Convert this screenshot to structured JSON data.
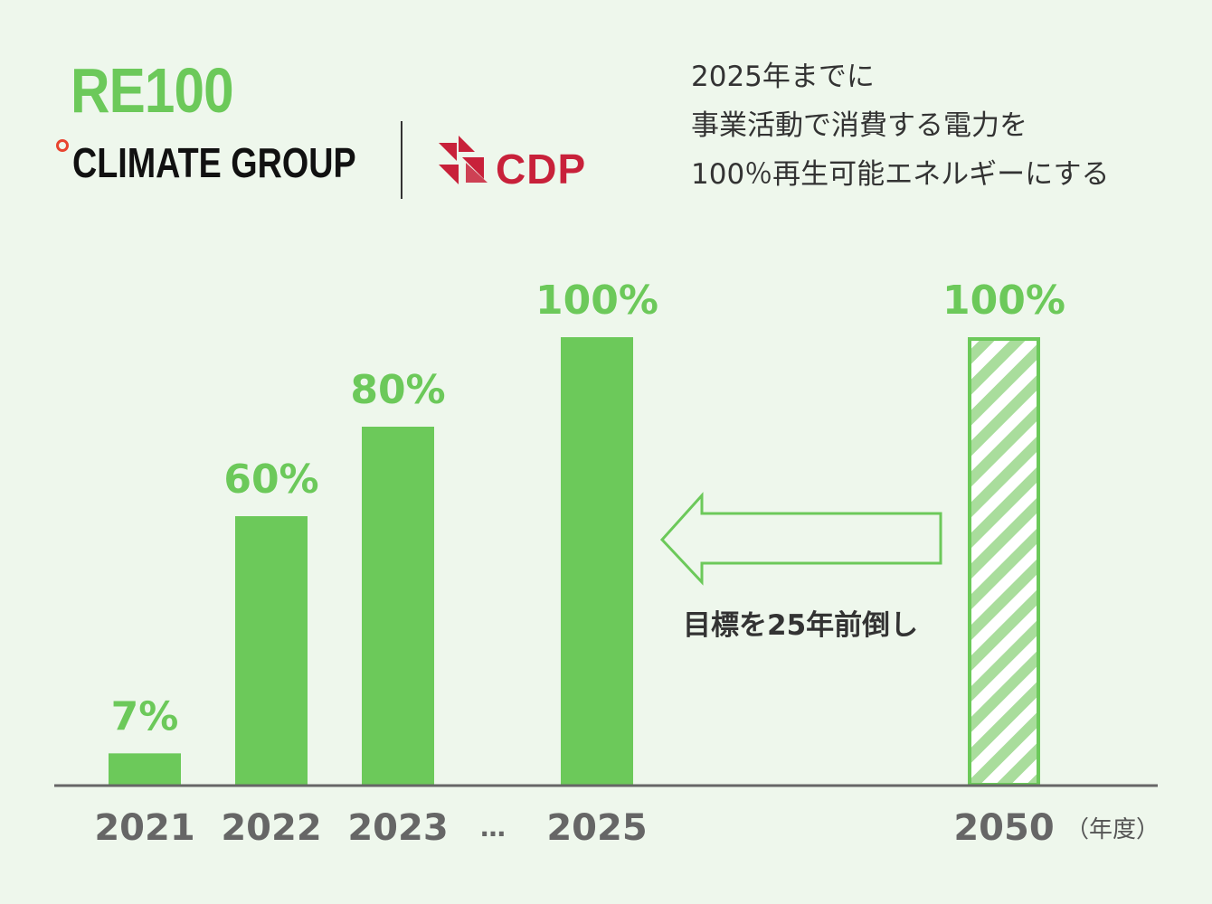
{
  "header": {
    "re100_logo": "RE100",
    "climate_group_logo": "CLIMATE GROUP",
    "cdp_logo": "CDP",
    "description_lines": [
      "2025年までに",
      "事業活動で消費する電力を",
      "100％再生可能エネルギーにする"
    ]
  },
  "colors": {
    "bar": "#6cc95a",
    "label": "#6cc95a",
    "axis": "#666666",
    "background": "#eef7ec",
    "climate_group_dot": "#e8442f",
    "cdp_red": "#c8213a"
  },
  "chart_data": {
    "type": "bar",
    "categories": [
      "2021",
      "2022",
      "2023",
      "2025",
      "2050"
    ],
    "values": [
      7,
      60,
      80,
      100,
      100
    ],
    "labels": [
      "7%",
      "60%",
      "80%",
      "100%",
      "100%"
    ],
    "bar_styles": [
      "solid",
      "solid",
      "solid",
      "solid",
      "hatched"
    ],
    "ellipsis_label": "…",
    "axis_unit_label": "（年度）",
    "ylim": [
      0,
      100
    ],
    "annotation": "目標を25年前倒し",
    "annotation_arrow": "2050 → 2025"
  }
}
